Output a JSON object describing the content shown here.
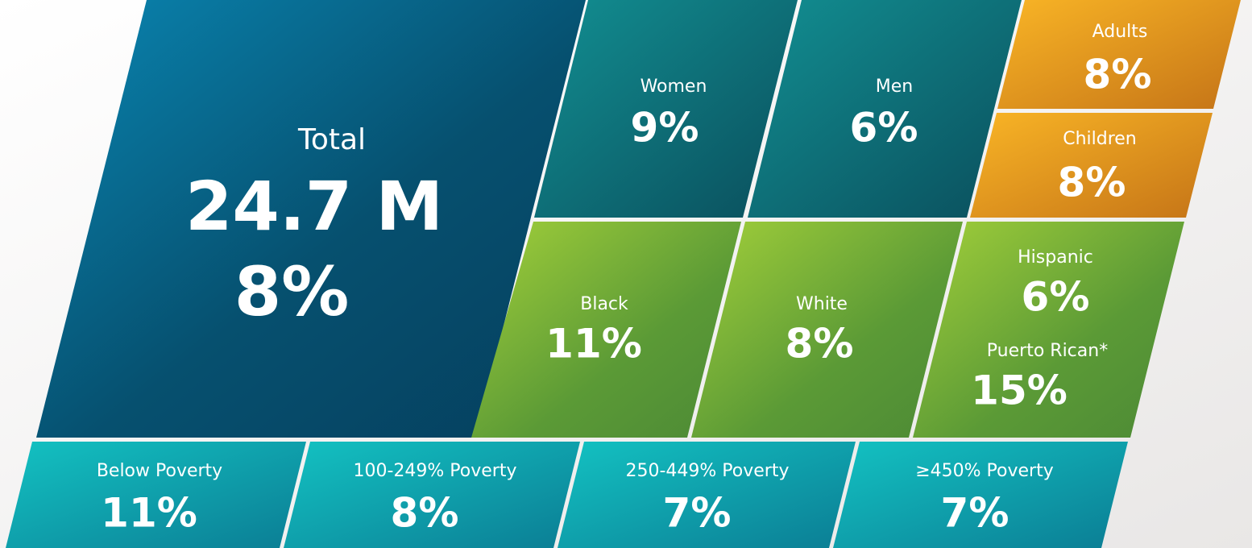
{
  "total": {
    "label": "Total",
    "count": "24.7 M",
    "percent": "8%"
  },
  "tiles": [
    {
      "label": "Women",
      "value": "9%"
    },
    {
      "label": "Men",
      "value": "6%"
    },
    {
      "label": "Adults",
      "value": "8%"
    },
    {
      "label": "Children",
      "value": "8%"
    },
    {
      "label": "Black",
      "value": "11%"
    },
    {
      "label": "White",
      "value": "8%"
    },
    {
      "label": "Hispanic",
      "value": "6%"
    },
    {
      "label": "Puerto Rican*",
      "value": "15%"
    },
    {
      "label": "Below Poverty",
      "value": "11%"
    },
    {
      "label": "100-249% Poverty",
      "value": "8%"
    },
    {
      "label": "250-449% Poverty",
      "value": "7%"
    },
    {
      "label": "≥450% Poverty",
      "value": "7%"
    }
  ]
}
